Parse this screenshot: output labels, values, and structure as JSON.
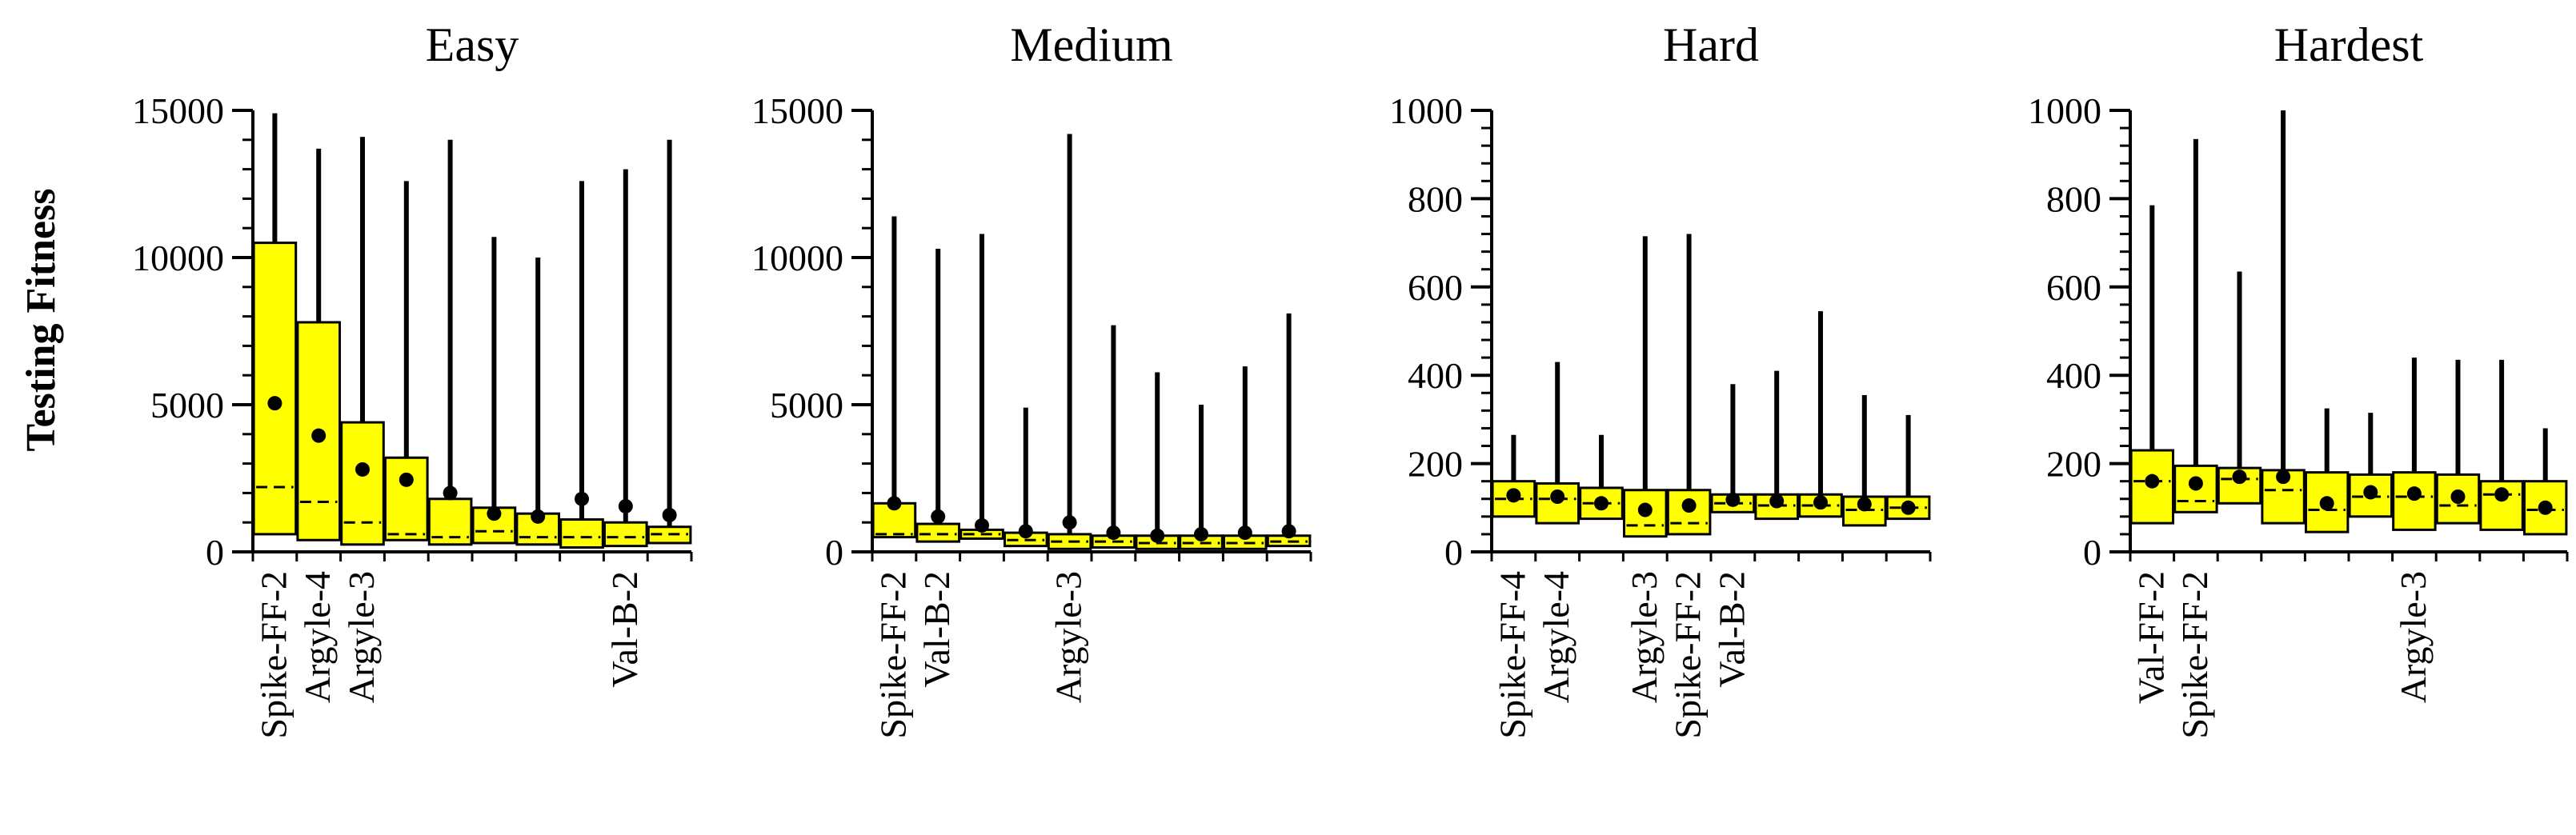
{
  "chart_data": {
    "type": "boxplot",
    "ylabel": "Testing Fitness",
    "colors": {
      "box_fill": "#ffff00",
      "stroke": "#000000"
    },
    "panels": [
      {
        "title": "Easy",
        "ylim": [
          0,
          15000
        ],
        "yticks": [
          0,
          5000,
          10000,
          15000
        ],
        "ytick_labels": [
          "0",
          "5000",
          "10000",
          "15000"
        ],
        "category_labels": [
          {
            "index": 0,
            "lines": [
              "Spike-FF-2"
            ]
          },
          {
            "index": 1,
            "lines": [
              "Argyle-4"
            ]
          },
          {
            "index": 2,
            "lines": [
              "Argyle-3"
            ]
          },
          {
            "index": 8,
            "lines": [
              "Val-B-2"
            ]
          }
        ],
        "boxes": [
          {
            "q1": 600,
            "q3": 10500,
            "median": 2200,
            "mean": 5050,
            "max": 14900
          },
          {
            "q1": 400,
            "q3": 7800,
            "median": 1700,
            "mean": 3950,
            "max": 13700
          },
          {
            "q1": 250,
            "q3": 4400,
            "median": 1000,
            "mean": 2800,
            "max": 14100
          },
          {
            "q1": 400,
            "q3": 3200,
            "median": 600,
            "mean": 2450,
            "max": 12600
          },
          {
            "q1": 250,
            "q3": 1800,
            "median": 500,
            "mean": 2000,
            "max": 14000
          },
          {
            "q1": 300,
            "q3": 1500,
            "median": 700,
            "mean": 1300,
            "max": 10700
          },
          {
            "q1": 250,
            "q3": 1300,
            "median": 500,
            "mean": 1200,
            "max": 10000
          },
          {
            "q1": 150,
            "q3": 1100,
            "median": 500,
            "mean": 1800,
            "max": 12600
          },
          {
            "q1": 200,
            "q3": 1000,
            "median": 500,
            "mean": 1550,
            "max": 13000
          },
          {
            "q1": 300,
            "q3": 850,
            "median": 600,
            "mean": 1250,
            "max": 14000
          }
        ]
      },
      {
        "title": "Medium",
        "ylim": [
          0,
          15000
        ],
        "yticks": [
          0,
          5000,
          10000,
          15000
        ],
        "ytick_labels": [
          "0",
          "5000",
          "10000",
          "15000"
        ],
        "category_labels": [
          {
            "index": 0,
            "lines": [
              "Spike-FF-2"
            ]
          },
          {
            "index": 1,
            "lines": [
              "Val-B-2"
            ]
          },
          {
            "index": 4,
            "lines": [
              "Argyle-3"
            ]
          }
        ],
        "boxes": [
          {
            "q1": 500,
            "q3": 1650,
            "median": 600,
            "mean": 1650,
            "max": 11400
          },
          {
            "q1": 350,
            "q3": 950,
            "median": 600,
            "mean": 1200,
            "max": 10300
          },
          {
            "q1": 450,
            "q3": 750,
            "median": 600,
            "mean": 900,
            "max": 10800
          },
          {
            "q1": 200,
            "q3": 650,
            "median": 400,
            "mean": 700,
            "max": 4900
          },
          {
            "q1": 100,
            "q3": 600,
            "median": 350,
            "mean": 1000,
            "max": 14200
          },
          {
            "q1": 150,
            "q3": 550,
            "median": 350,
            "mean": 650,
            "max": 7700
          },
          {
            "q1": 100,
            "q3": 550,
            "median": 300,
            "mean": 550,
            "max": 6100
          },
          {
            "q1": 100,
            "q3": 550,
            "median": 300,
            "mean": 600,
            "max": 5000
          },
          {
            "q1": 100,
            "q3": 550,
            "median": 300,
            "mean": 650,
            "max": 6300
          },
          {
            "q1": 200,
            "q3": 550,
            "median": 350,
            "mean": 700,
            "max": 8100
          }
        ]
      },
      {
        "title": "Hard",
        "ylim": [
          0,
          1000
        ],
        "yticks": [
          0,
          200,
          400,
          600,
          800,
          1000
        ],
        "ytick_labels": [
          "0",
          "200",
          "400",
          "600",
          "800",
          "1000"
        ],
        "category_labels": [
          {
            "index": 0,
            "lines": [
              "Spike-FF-4"
            ]
          },
          {
            "index": 1,
            "lines": [
              "Argyle-4"
            ]
          },
          {
            "index": 3,
            "lines": [
              "Argyle-3"
            ]
          },
          {
            "index": 4,
            "lines": [
              "Spike-FF-2"
            ]
          },
          {
            "index": 5,
            "lines": [
              "Val-B-2"
            ]
          }
        ],
        "boxes": [
          {
            "q1": 80,
            "q3": 160,
            "median": 120,
            "mean": 128,
            "max": 265
          },
          {
            "q1": 65,
            "q3": 155,
            "median": 120,
            "mean": 125,
            "max": 430
          },
          {
            "q1": 75,
            "q3": 145,
            "median": 110,
            "mean": 110,
            "max": 265
          },
          {
            "q1": 35,
            "q3": 140,
            "median": 60,
            "mean": 95,
            "max": 715
          },
          {
            "q1": 40,
            "q3": 140,
            "median": 65,
            "mean": 105,
            "max": 720
          },
          {
            "q1": 90,
            "q3": 130,
            "median": 110,
            "mean": 118,
            "max": 380
          },
          {
            "q1": 75,
            "q3": 130,
            "median": 105,
            "mean": 115,
            "max": 410
          },
          {
            "q1": 80,
            "q3": 130,
            "median": 105,
            "mean": 112,
            "max": 545
          },
          {
            "q1": 60,
            "q3": 125,
            "median": 95,
            "mean": 108,
            "max": 355
          },
          {
            "q1": 75,
            "q3": 125,
            "median": 100,
            "mean": 100,
            "max": 310
          }
        ]
      },
      {
        "title": "Hardest",
        "ylim": [
          0,
          1000
        ],
        "yticks": [
          0,
          200,
          400,
          600,
          800,
          1000
        ],
        "ytick_labels": [
          "0",
          "200",
          "400",
          "600",
          "800",
          "1000"
        ],
        "category_labels": [
          {
            "index": 0,
            "lines": [
              "Val-FF-2"
            ]
          },
          {
            "index": 1,
            "lines": [
              "Spike-FF-2"
            ]
          },
          {
            "index": 6,
            "lines": [
              "Argyle-3"
            ]
          }
        ],
        "boxes": [
          {
            "q1": 65,
            "q3": 230,
            "median": 160,
            "mean": 160,
            "max": 785
          },
          {
            "q1": 90,
            "q3": 195,
            "median": 115,
            "mean": 155,
            "max": 935
          },
          {
            "q1": 110,
            "q3": 190,
            "median": 165,
            "mean": 170,
            "max": 635
          },
          {
            "q1": 65,
            "q3": 185,
            "median": 140,
            "mean": 170,
            "max": 1000
          },
          {
            "q1": 45,
            "q3": 180,
            "median": 95,
            "mean": 110,
            "max": 325
          },
          {
            "q1": 80,
            "q3": 175,
            "median": 125,
            "mean": 135,
            "max": 315
          },
          {
            "q1": 50,
            "q3": 180,
            "median": 125,
            "mean": 132,
            "max": 440
          },
          {
            "q1": 65,
            "q3": 175,
            "median": 105,
            "mean": 125,
            "max": 435
          },
          {
            "q1": 50,
            "q3": 160,
            "median": 130,
            "mean": 130,
            "max": 435
          },
          {
            "q1": 40,
            "q3": 160,
            "median": 95,
            "mean": 100,
            "max": 280
          }
        ]
      }
    ]
  }
}
